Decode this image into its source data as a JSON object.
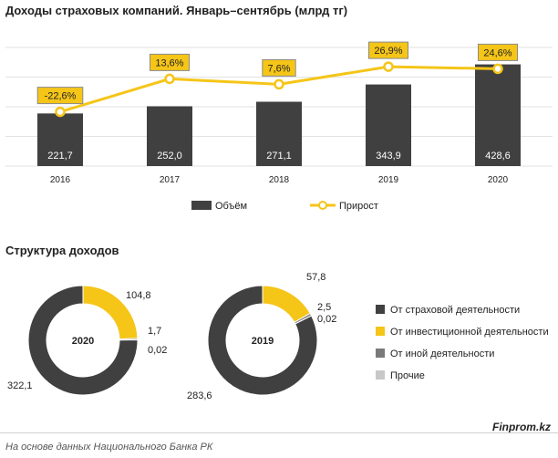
{
  "header": {
    "title": "Доходы страховых компаний. Январь–сентябрь (млрд тг)"
  },
  "structure": {
    "title": "Структура доходов"
  },
  "footer": {
    "brand": "Finprom.kz",
    "source": "На основе данных  Национального  Банка РК"
  },
  "colors": {
    "bar": "#404040",
    "line": "#f5c518",
    "label_bg": "#f5c518",
    "investment": "#f5c518",
    "insurance": "#404040",
    "other": "#7a7a7a",
    "misc": "#c8c8c8"
  },
  "chart_data": [
    {
      "type": "bar",
      "title": "Доходы страховых компаний. Январь–сентябрь (млрд тг)",
      "categories": [
        "2016",
        "2017",
        "2018",
        "2019",
        "2020"
      ],
      "series": [
        {
          "name": "Объём",
          "type": "bar",
          "values": [
            221.7,
            252.0,
            271.1,
            343.9,
            428.6
          ],
          "labels": [
            "221,7",
            "252,0",
            "271,1",
            "343,9",
            "428,6"
          ]
        },
        {
          "name": "Прирост",
          "type": "line",
          "values": [
            -22.6,
            13.6,
            7.6,
            26.9,
            24.6
          ],
          "labels": [
            "-22,6%",
            "13,6%",
            "7,6%",
            "26,9%",
            "24,6%"
          ]
        }
      ],
      "grid": true,
      "legend": "bottom"
    },
    {
      "type": "pie",
      "center_label": "2020",
      "values": [
        322.1,
        104.8,
        1.7,
        0.02
      ],
      "labels": [
        "322,1",
        "104,8",
        "1,7",
        "0,02"
      ]
    },
    {
      "type": "pie",
      "center_label": "2019",
      "values": [
        283.6,
        57.8,
        2.5,
        0.02
      ],
      "labels": [
        "283,6",
        "57,8",
        "2,5",
        "0,02"
      ]
    }
  ],
  "pie_legend": [
    "От страховой деятельности",
    "От инвестиционной деятельности",
    "От иной деятельности",
    "Прочие"
  ]
}
